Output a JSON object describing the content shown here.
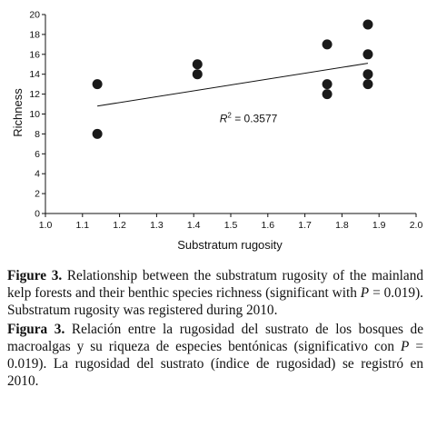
{
  "chart_data": {
    "type": "scatter",
    "xlabel": "Substratum rugosity",
    "ylabel": "Richness",
    "xlim": [
      1.0,
      2.0
    ],
    "ylim": [
      0,
      20
    ],
    "x_ticks": [
      "1.0",
      "1.1",
      "1.2",
      "1.3",
      "1.4",
      "1.5",
      "1.6",
      "1.7",
      "1.8",
      "1.9",
      "2.0"
    ],
    "y_ticks": [
      "0",
      "2",
      "4",
      "6",
      "8",
      "10",
      "12",
      "14",
      "16",
      "18",
      "20"
    ],
    "points": [
      {
        "x": 1.14,
        "y": 13
      },
      {
        "x": 1.14,
        "y": 8
      },
      {
        "x": 1.41,
        "y": 15
      },
      {
        "x": 1.41,
        "y": 14
      },
      {
        "x": 1.76,
        "y": 17
      },
      {
        "x": 1.76,
        "y": 13
      },
      {
        "x": 1.76,
        "y": 12
      },
      {
        "x": 1.87,
        "y": 19
      },
      {
        "x": 1.87,
        "y": 16
      },
      {
        "x": 1.87,
        "y": 14
      },
      {
        "x": 1.87,
        "y": 13
      }
    ],
    "trendline": {
      "x": [
        1.14,
        1.87
      ],
      "y": [
        10.8,
        15.1
      ]
    },
    "annotation": {
      "r_label": "R",
      "r_sup": "2",
      "r_value": " = 0.3577",
      "x": 1.47,
      "y": 9.2
    },
    "point_color": "#1a1a1a",
    "grid": false,
    "legend": "none"
  },
  "caption": {
    "en_label": "Figure 3.",
    "en_text_1": " Relationship between the substratum rugosity of the mainland kelp forests and their benthic species richness (significant with ",
    "en_p": "P",
    "en_text_2": " = 0.019). Substratum rugosity was registered during 2010.",
    "es_label": "Figura 3.",
    "es_text_1": " Relación entre la rugosidad del sustrato de los bosques de macroalgas y su riqueza de especies bentónicas (significativo con ",
    "es_p": "P",
    "es_text_2": " = 0.019). La rugosidad del sustrato (índice de rugosidad) se registró en 2010."
  }
}
